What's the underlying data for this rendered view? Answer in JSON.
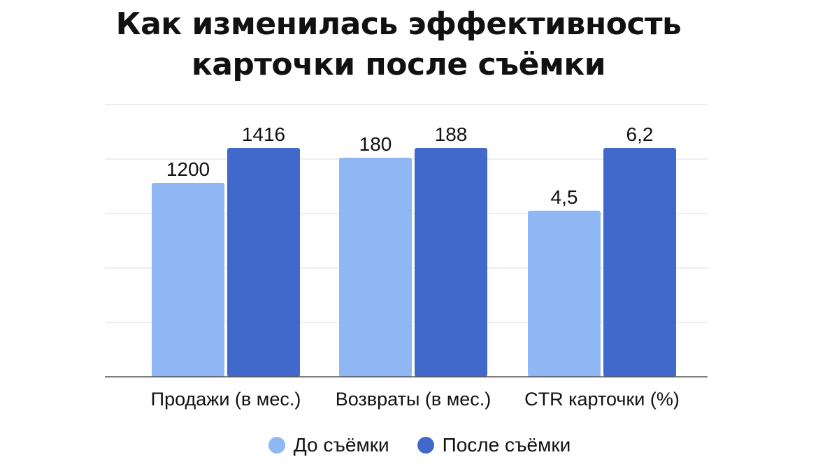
{
  "title_lines": [
    "Как изменилась эффективность",
    "карточки после съёмки"
  ],
  "colors": {
    "before": "#8FB8F5",
    "after": "#4169CB",
    "grid": "#DDDDDD",
    "axis": "#555555"
  },
  "chart_data": {
    "type": "bar",
    "title": "Как изменилась эффективность карточки после съёмки",
    "categories": [
      "Продажи (в мес.)",
      "Возвраты (в мес.)",
      "CTR карточки (%)"
    ],
    "series": [
      {
        "name": "До съёмки",
        "values": [
          1200,
          180,
          4.5
        ],
        "labels": [
          "1200",
          "180",
          "4,5"
        ]
      },
      {
        "name": "После съёмки",
        "values": [
          1416,
          188,
          6.2
        ],
        "labels": [
          "1416",
          "188",
          "6,2"
        ]
      }
    ],
    "note": "each category uses its own scale; no y-axis tick labels shown",
    "grid": true,
    "legend": "bottom-center"
  }
}
